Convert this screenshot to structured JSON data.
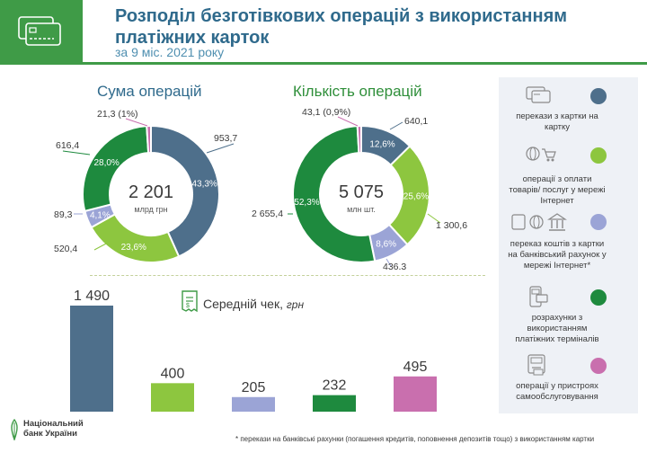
{
  "header": {
    "title": "Розподіл безготівкових операцій з використанням платіжних карток",
    "subtitle": "за 9 міс. 2021 року"
  },
  "colors": {
    "slate": "#4e6f8b",
    "light_green": "#8dc63f",
    "lavender": "#9ba4d6",
    "dark_green": "#1e8a3e",
    "pink": "#c96fae"
  },
  "chart_data": [
    {
      "type": "pie",
      "title": "Сума операцій",
      "center_value": "2 201",
      "center_unit": "млрд грн",
      "slices": [
        {
          "value": "953,7",
          "percent": "43,3%",
          "pct": 43.3,
          "color": "#4e6f8b"
        },
        {
          "value": "520,4",
          "percent": "23,6%",
          "pct": 23.6,
          "color": "#8dc63f"
        },
        {
          "value": "89,3",
          "percent": "4,1%",
          "pct": 4.1,
          "color": "#9ba4d6"
        },
        {
          "value": "616,4",
          "percent": "28,0%",
          "pct": 28.0,
          "color": "#1e8a3e"
        },
        {
          "value": "21,3 (1%)",
          "percent": "",
          "pct": 1.0,
          "color": "#c96fae"
        }
      ]
    },
    {
      "type": "pie",
      "title": "Кількість операцій",
      "center_value": "5 075",
      "center_unit": "млн шт.",
      "slices": [
        {
          "value": "640,1",
          "percent": "12,6%",
          "pct": 12.6,
          "color": "#4e6f8b"
        },
        {
          "value": "1 300,6",
          "percent": "25,6%",
          "pct": 25.6,
          "color": "#8dc63f"
        },
        {
          "value": "436,3",
          "percent": "8,6%",
          "pct": 8.6,
          "color": "#9ba4d6"
        },
        {
          "value": "2 655,4",
          "percent": "52,3%",
          "pct": 52.3,
          "color": "#1e8a3e"
        },
        {
          "value": "43,1 (0,9%)",
          "percent": "",
          "pct": 0.9,
          "color": "#c96fae"
        }
      ]
    },
    {
      "type": "bar",
      "title": "Середній чек,",
      "unit": "грн",
      "categories": [
        "перекази з картки на картку",
        "операції з оплати товарів/ послуг у мережі Інтернет",
        "переказ коштів з картки на банківський рахунок у мережі Інтернет*",
        "розрахунки з використанням платіжних терміналів",
        "операції у пристроях самообслуговування"
      ],
      "values": [
        1490,
        400,
        205,
        232,
        495
      ],
      "labels": [
        "1 490",
        "400",
        "205",
        "232",
        "495"
      ],
      "colors": [
        "#4e6f8b",
        "#8dc63f",
        "#9ba4d6",
        "#1e8a3e",
        "#c96fae"
      ]
    }
  ],
  "legend": [
    {
      "text": "перекази з картки на картку",
      "color": "#4e6f8b",
      "icon": "card-transfer-icon"
    },
    {
      "text": "операції з оплати товарів/ послуг у мережі Інтернет",
      "color": "#8dc63f",
      "icon": "online-shopping-icon"
    },
    {
      "text": "переказ коштів з картки на банківський рахунок у мережі Інтернет*",
      "color": "#9ba4d6",
      "icon": "bank-transfer-icon"
    },
    {
      "text": "розрахунки з використанням платіжних терміналів",
      "color": "#1e8a3e",
      "icon": "pos-terminal-icon"
    },
    {
      "text": "операції у пристроях самообслуговування",
      "color": "#c96fae",
      "icon": "atm-icon"
    }
  ],
  "footnote": "* перекази на банківські рахунки (погашення кредитів, поповнення депозитів тощо) з використанням картки",
  "bank": {
    "line1": "Національний",
    "line2": "банк України"
  }
}
